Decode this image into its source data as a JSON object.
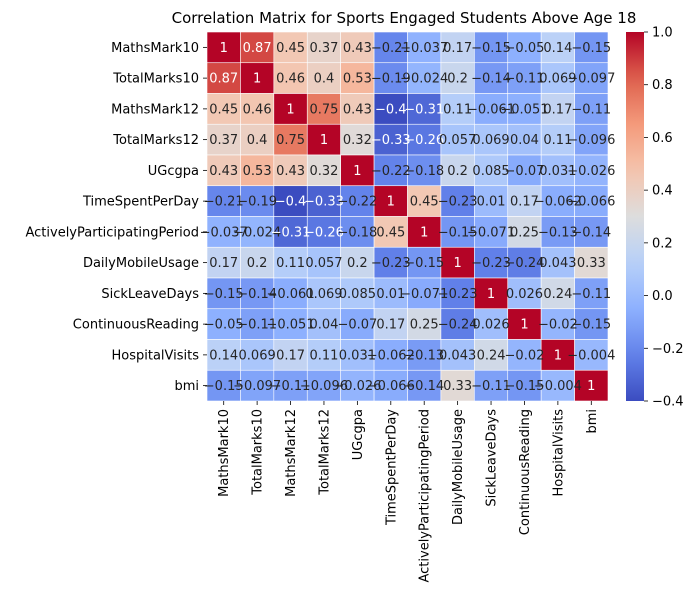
{
  "chart_data": {
    "type": "heatmap",
    "title": "Correlation Matrix for Sports Engaged Students Above Age 18",
    "labels": [
      "MathsMark10",
      "TotalMarks10",
      "MathsMark12",
      "TotalMarks12",
      "UGcgpa",
      "TimeSpentPerDay",
      "ActivelyParticipatingPeriod",
      "DailyMobileUsage",
      "SickLeaveDays",
      "ContinuousReading",
      "HospitalVisits",
      "bmi"
    ],
    "values": [
      [
        1,
        0.87,
        0.45,
        0.37,
        0.43,
        -0.21,
        -0.037,
        0.17,
        -0.15,
        -0.05,
        0.14,
        -0.15
      ],
      [
        0.87,
        1,
        0.46,
        0.4,
        0.53,
        -0.19,
        -0.024,
        0.2,
        -0.14,
        -0.11,
        0.069,
        -0.097
      ],
      [
        0.45,
        0.46,
        1,
        0.75,
        0.43,
        -0.4,
        -0.31,
        0.11,
        -0.061,
        -0.051,
        0.17,
        -0.11
      ],
      [
        0.37,
        0.4,
        0.75,
        1,
        0.32,
        -0.33,
        -0.26,
        0.057,
        0.069,
        0.04,
        0.11,
        -0.096
      ],
      [
        0.43,
        0.53,
        0.43,
        0.32,
        1,
        -0.22,
        -0.18,
        0.2,
        0.085,
        -0.07,
        0.031,
        -0.026
      ],
      [
        -0.21,
        -0.19,
        -0.4,
        -0.33,
        -0.22,
        1,
        0.45,
        -0.23,
        0.01,
        0.17,
        -0.062,
        -0.066
      ],
      [
        -0.037,
        -0.024,
        -0.31,
        -0.26,
        -0.18,
        0.45,
        1,
        -0.15,
        -0.071,
        0.25,
        -0.13,
        -0.14
      ],
      [
        0.17,
        0.2,
        0.11,
        0.057,
        0.2,
        -0.23,
        -0.15,
        1,
        -0.23,
        -0.24,
        0.043,
        0.33
      ],
      [
        -0.15,
        -0.14,
        -0.061,
        0.069,
        0.085,
        0.01,
        -0.071,
        -0.23,
        1,
        0.026,
        0.24,
        -0.11
      ],
      [
        -0.05,
        -0.11,
        -0.051,
        0.04,
        -0.07,
        0.17,
        0.25,
        -0.24,
        0.026,
        1,
        -0.02,
        -0.15
      ],
      [
        0.14,
        0.069,
        0.17,
        0.11,
        0.031,
        -0.062,
        -0.13,
        0.043,
        0.24,
        -0.02,
        1,
        -0.004
      ],
      [
        -0.15,
        -0.097,
        -0.11,
        -0.096,
        -0.026,
        -0.066,
        -0.14,
        0.33,
        -0.11,
        -0.15,
        -0.004,
        1
      ]
    ],
    "colorbar": {
      "min": -0.4,
      "max": 1.0,
      "ticks": [
        -0.4,
        -0.2,
        0.0,
        0.2,
        0.4,
        0.6,
        0.8,
        1.0
      ],
      "tick_labels": [
        "−0.4",
        "−0.2",
        "0.0",
        "0.2",
        "0.4",
        "0.6",
        "0.8",
        "1.0"
      ]
    },
    "colormap": "coolwarm",
    "annotations": true
  }
}
